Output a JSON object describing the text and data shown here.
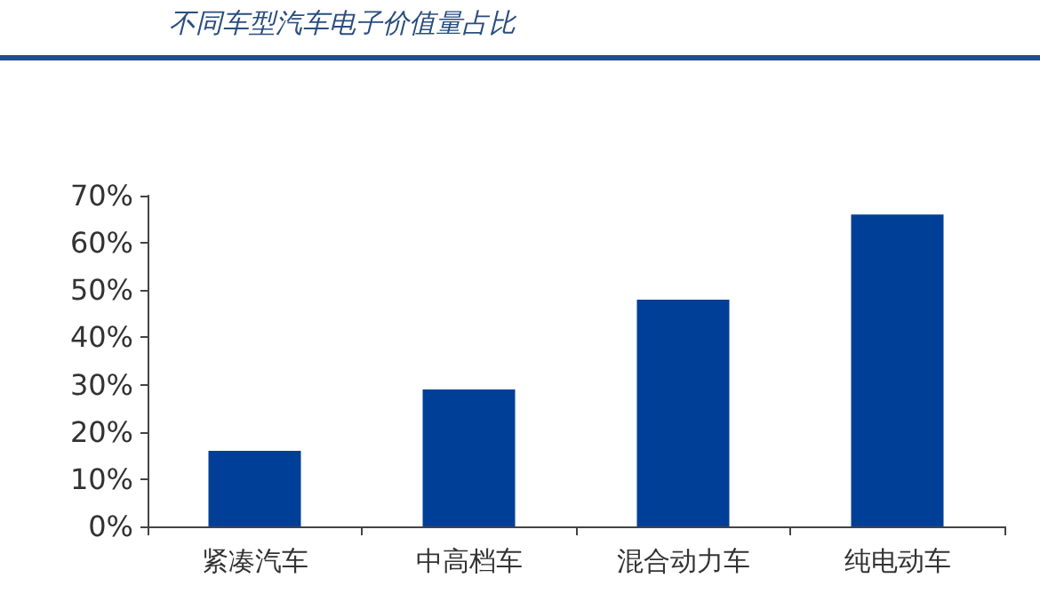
{
  "chart_data": {
    "type": "bar",
    "title": "不同车型汽车电子价值量占比",
    "categories": [
      "紧凑汽车",
      "中高档车",
      "混合动力车",
      "纯电动车"
    ],
    "values": [
      16,
      29,
      48,
      66
    ],
    "color": "#003f98",
    "ylim": [
      0,
      70
    ],
    "yticks": [
      {
        "value": 0,
        "label": "0%"
      },
      {
        "value": 10,
        "label": "10%"
      },
      {
        "value": 20,
        "label": "20%"
      },
      {
        "value": 30,
        "label": "30%"
      },
      {
        "value": 40,
        "label": "40%"
      },
      {
        "value": 50,
        "label": "50%"
      },
      {
        "value": 60,
        "label": "60%"
      },
      {
        "value": 70,
        "label": "70%"
      }
    ],
    "grid": false
  }
}
